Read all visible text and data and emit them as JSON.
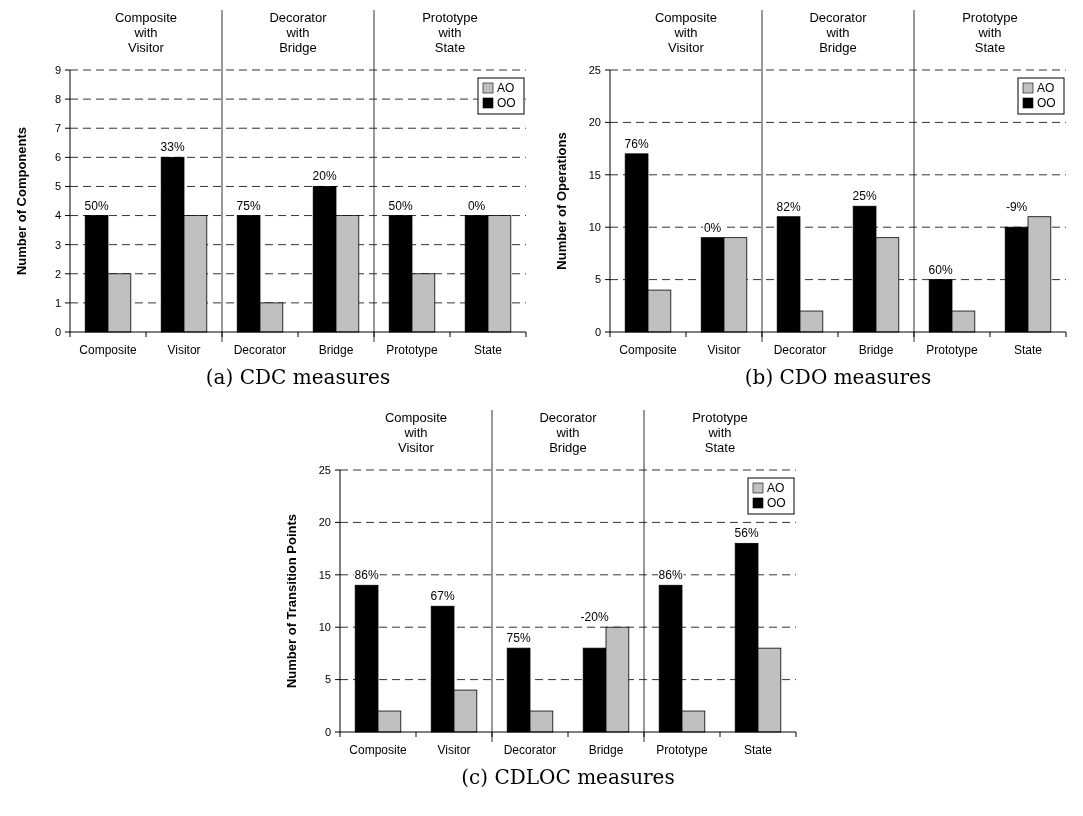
{
  "chart_data": [
    {
      "type": "bar",
      "title": "(a) CDC measures",
      "ylabel": "Number of Components",
      "categories": [
        "Composite",
        "Visitor",
        "Decorator",
        "Bridge",
        "Prototype",
        "State"
      ],
      "series": [
        {
          "name": "OO",
          "color": "#000000",
          "values": [
            4,
            6,
            4,
            5,
            4,
            4
          ]
        },
        {
          "name": "AO",
          "color": "#c0c0c0",
          "values": [
            2,
            4,
            1,
            4,
            2,
            4
          ]
        }
      ],
      "annotations": [
        "Composite with Visitor",
        "Decorator with Bridge",
        "Prototype with State",
        {
          "text": "50%",
          "x": "Composite",
          "y": 4
        },
        {
          "text": "33%",
          "x": "Visitor",
          "y": 6
        },
        {
          "text": "75%",
          "x": "Decorator",
          "y": 4
        },
        {
          "text": "20%",
          "x": "Bridge",
          "y": 5
        },
        {
          "text": "50%",
          "x": "Prototype",
          "y": 4
        },
        {
          "text": "0%",
          "x": "State",
          "y": 4
        }
      ],
      "ylim": [
        0,
        9
      ],
      "yticks": [
        0,
        1,
        2,
        3,
        4,
        5,
        6,
        7,
        8,
        9
      ],
      "grid": "y",
      "legend": "top right"
    },
    {
      "type": "bar",
      "title": "(b) CDO measures",
      "ylabel": "Number of Operations",
      "categories": [
        "Composite",
        "Visitor",
        "Decorator",
        "Bridge",
        "Prototype",
        "State"
      ],
      "series": [
        {
          "name": "OO",
          "color": "#000000",
          "values": [
            17,
            9,
            11,
            12,
            5,
            10
          ]
        },
        {
          "name": "AO",
          "color": "#c0c0c0",
          "values": [
            4,
            9,
            2,
            9,
            2,
            11
          ]
        }
      ],
      "annotations": [
        "Composite with Visitor",
        "Decorator with Bridge",
        "Prototype with State",
        {
          "text": "76%",
          "x": "Composite",
          "y": 17
        },
        {
          "text": "0%",
          "x": "Visitor",
          "y": 9
        },
        {
          "text": "82%",
          "x": "Decorator",
          "y": 11
        },
        {
          "text": "25%",
          "x": "Bridge",
          "y": 12
        },
        {
          "text": "60%",
          "x": "Prototype",
          "y": 5
        },
        {
          "text": "-9%",
          "x": "State",
          "y": 11
        }
      ],
      "ylim": [
        0,
        25
      ],
      "yticks": [
        0,
        5,
        10,
        15,
        20,
        25
      ],
      "grid": "y",
      "legend": "top right"
    },
    {
      "type": "bar",
      "title": "(c) CDLOC measures",
      "ylabel": "Number of Transition Points",
      "categories": [
        "Composite",
        "Visitor",
        "Decorator",
        "Bridge",
        "Prototype",
        "State"
      ],
      "series": [
        {
          "name": "OO",
          "color": "#000000",
          "values": [
            14,
            12,
            8,
            8,
            14,
            18
          ]
        },
        {
          "name": "AO",
          "color": "#c0c0c0",
          "values": [
            2,
            4,
            2,
            10,
            2,
            8
          ]
        }
      ],
      "annotations": [
        "Composite with Visitor",
        "Decorator with Bridge",
        "Prototype with State",
        {
          "text": "86%",
          "x": "Composite",
          "y": 14
        },
        {
          "text": "67%",
          "x": "Visitor",
          "y": 12
        },
        {
          "text": "75%",
          "x": "Decorator",
          "y": 8
        },
        {
          "text": "-20%",
          "x": "Bridge",
          "y": 10
        },
        {
          "text": "86%",
          "x": "Prototype",
          "y": 14
        },
        {
          "text": "56%",
          "x": "State",
          "y": 18
        }
      ],
      "ylim": [
        0,
        25
      ],
      "yticks": [
        0,
        5,
        10,
        15,
        20,
        25
      ],
      "grid": "y",
      "legend": "top right"
    }
  ]
}
